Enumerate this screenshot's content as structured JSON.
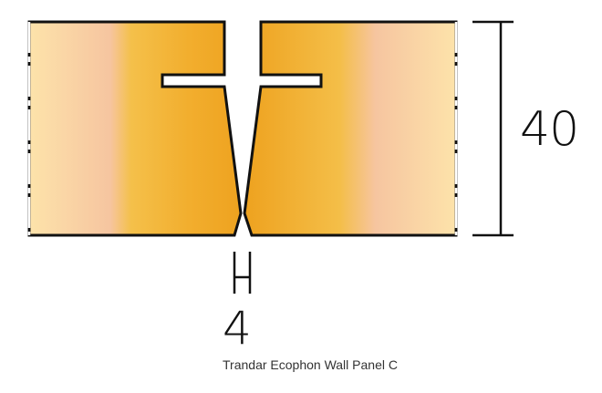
{
  "diagram": {
    "caption": "Trandar Ecophon Wall Panel C",
    "dimensions": {
      "height": "40",
      "joint_gap": "4"
    },
    "colors": {
      "panel_light": "#FCE0A6",
      "panel_peach": "#F6C5A0",
      "panel_gold": "#F3B23A",
      "panel_deep": "#EFA526",
      "outline": "#111111"
    }
  }
}
